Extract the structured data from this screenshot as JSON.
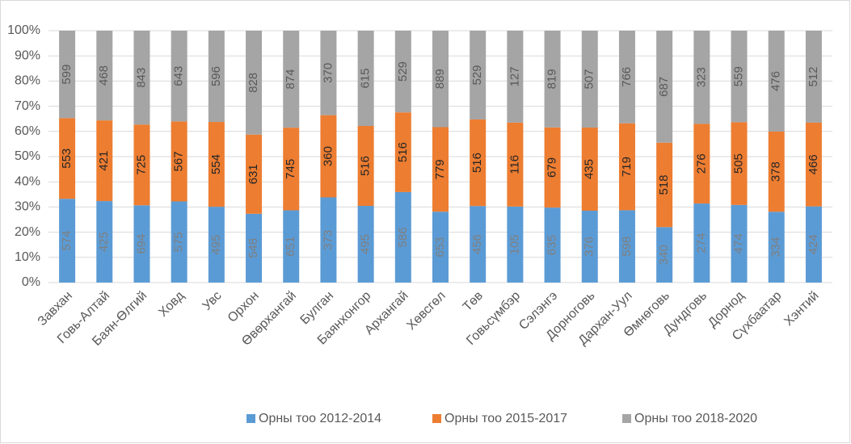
{
  "chart_data": {
    "type": "bar",
    "stacking": "percent",
    "categories": [
      "Завхан",
      "Говь-Алтай",
      "Баян-Өлгий",
      "Ховд",
      "Увс",
      "Орхон",
      "Өвөрхангай",
      "Булган",
      "Баянхонгор",
      "Архангай",
      "Хөвсгөл",
      "Төв",
      "Говьсүмбэр",
      "Сэлэнгэ",
      "Дорноговь",
      "Дархан-Уул",
      "Өмнөговь",
      "Дундговь",
      "Дорнод",
      "Сүхбаатар",
      "Хэнтий"
    ],
    "series": [
      {
        "name": "Орны тоо 2012-2014",
        "color": "#5b9bd5",
        "values": [
          574,
          425,
          694,
          575,
          495,
          548,
          651,
          373,
          495,
          586,
          653,
          456,
          105,
          635,
          376,
          598,
          340,
          274,
          474,
          334,
          424
        ]
      },
      {
        "name": "Орны тоо 2015-2017",
        "color": "#ed7d31",
        "values": [
          553,
          421,
          725,
          567,
          554,
          631,
          745,
          360,
          516,
          516,
          779,
          516,
          116,
          679,
          435,
          719,
          518,
          276,
          505,
          378,
          466
        ]
      },
      {
        "name": "Орны тоо 2018-2020",
        "color": "#a5a5a5",
        "values": [
          599,
          468,
          843,
          643,
          596,
          828,
          874,
          370,
          615,
          529,
          889,
          529,
          127,
          819,
          507,
          766,
          687,
          323,
          559,
          476,
          512
        ]
      }
    ],
    "ylim": [
      0,
      100
    ],
    "yticks": [
      {
        "value": 0,
        "label": "0%"
      },
      {
        "value": 10,
        "label": "10%"
      },
      {
        "value": 20,
        "label": "20%"
      },
      {
        "value": 30,
        "label": "30%"
      },
      {
        "value": 40,
        "label": "40%"
      },
      {
        "value": 50,
        "label": "50%"
      },
      {
        "value": 60,
        "label": "60%"
      },
      {
        "value": 70,
        "label": "70%"
      },
      {
        "value": 80,
        "label": "80%"
      },
      {
        "value": 90,
        "label": "90%"
      },
      {
        "value": 100,
        "label": "100%"
      }
    ],
    "grid": true,
    "legend": "bottom"
  }
}
